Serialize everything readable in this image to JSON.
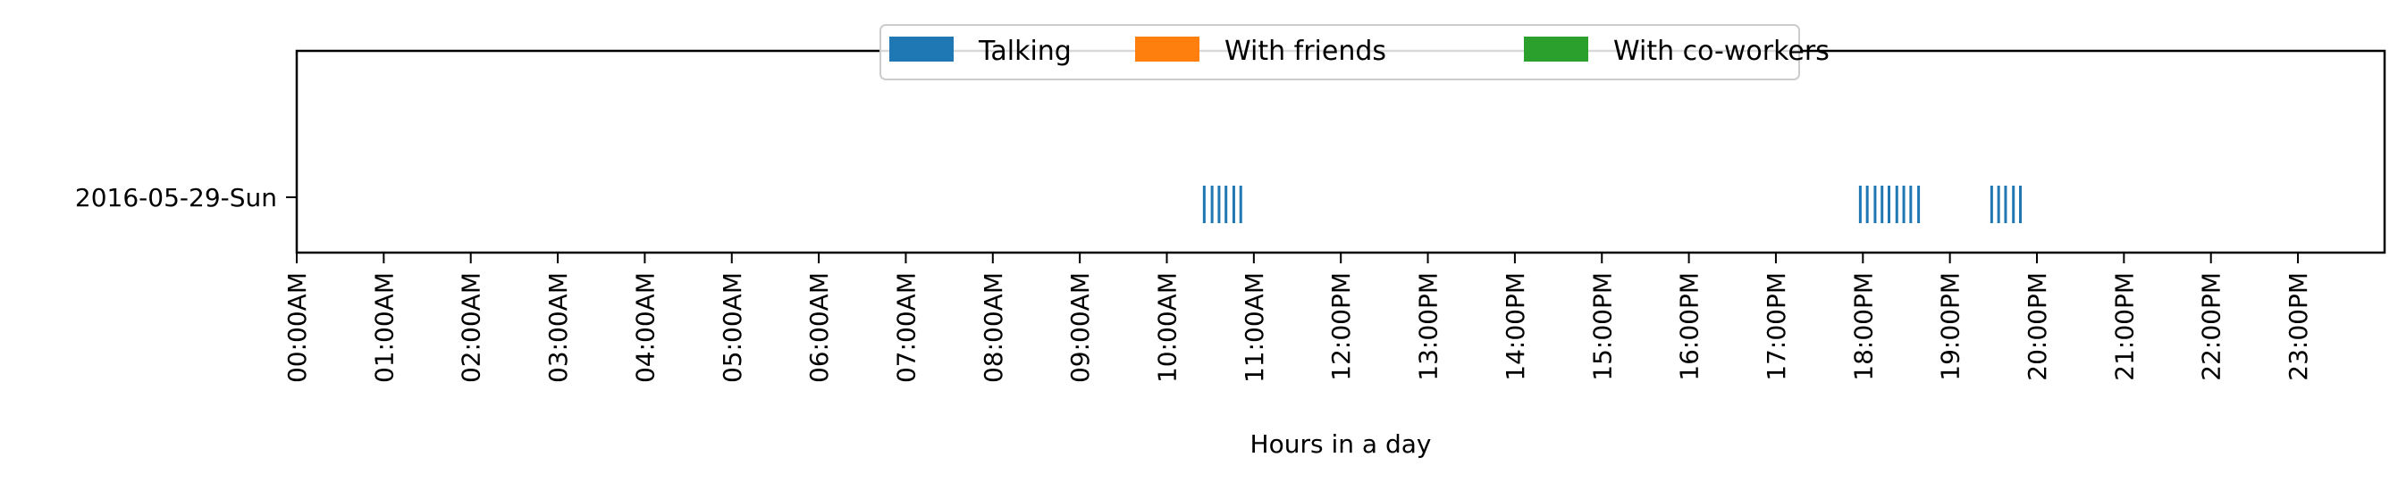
{
  "chart_data": {
    "type": "scatter",
    "title": "",
    "xlabel": "Hours in a day",
    "ylabel": "",
    "xlim": [
      0,
      24
    ],
    "grid": false,
    "legend_placement": "top-center",
    "categories": [
      "2016-05-29-Sun"
    ],
    "x_ticks": [
      "00:00AM",
      "01:00AM",
      "02:00AM",
      "03:00AM",
      "04:00AM",
      "05:00AM",
      "06:00AM",
      "07:00AM",
      "08:00AM",
      "09:00AM",
      "10:00AM",
      "11:00AM",
      "12:00PM",
      "13:00PM",
      "14:00PM",
      "15:00PM",
      "16:00PM",
      "17:00PM",
      "18:00PM",
      "19:00PM",
      "20:00PM",
      "21:00PM",
      "22:00PM",
      "23:00PM"
    ],
    "series": [
      {
        "name": "Talking",
        "color": "#1f77b4",
        "marker": "vertical-line",
        "points": [
          {
            "category": "2016-05-29-Sun",
            "x": 10.43
          },
          {
            "category": "2016-05-29-Sun",
            "x": 10.52
          },
          {
            "category": "2016-05-29-Sun",
            "x": 10.6
          },
          {
            "category": "2016-05-29-Sun",
            "x": 10.68
          },
          {
            "category": "2016-05-29-Sun",
            "x": 10.77
          },
          {
            "category": "2016-05-29-Sun",
            "x": 10.85
          },
          {
            "category": "2016-05-29-Sun",
            "x": 17.97
          },
          {
            "category": "2016-05-29-Sun",
            "x": 18.05
          },
          {
            "category": "2016-05-29-Sun",
            "x": 18.14
          },
          {
            "category": "2016-05-29-Sun",
            "x": 18.22
          },
          {
            "category": "2016-05-29-Sun",
            "x": 18.3
          },
          {
            "category": "2016-05-29-Sun",
            "x": 18.39
          },
          {
            "category": "2016-05-29-Sun",
            "x": 18.47
          },
          {
            "category": "2016-05-29-Sun",
            "x": 18.55
          },
          {
            "category": "2016-05-29-Sun",
            "x": 18.64
          },
          {
            "category": "2016-05-29-Sun",
            "x": 19.48
          },
          {
            "category": "2016-05-29-Sun",
            "x": 19.56
          },
          {
            "category": "2016-05-29-Sun",
            "x": 19.64
          },
          {
            "category": "2016-05-29-Sun",
            "x": 19.73
          },
          {
            "category": "2016-05-29-Sun",
            "x": 19.81
          }
        ]
      },
      {
        "name": "With friends",
        "color": "#ff7f0e",
        "marker": "vertical-line",
        "points": []
      },
      {
        "name": "With co-workers",
        "color": "#2ca02c",
        "marker": "vertical-line",
        "points": []
      }
    ]
  }
}
